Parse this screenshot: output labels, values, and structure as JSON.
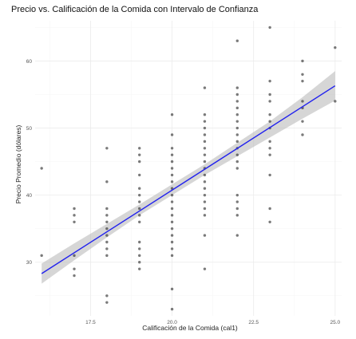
{
  "chart_data": {
    "type": "scatter",
    "title": "Precio vs. Calificación de la Comida con Intervalo de Confianza",
    "xlabel": "Calificación de la Comida (cal1)",
    "ylabel": "Precio Promedio (dólares)",
    "xlim": [
      15.8,
      25.2
    ],
    "ylim": [
      22,
      66
    ],
    "x_ticks": [
      17.5,
      20.0,
      22.5,
      25.0
    ],
    "x_tick_labels": [
      "17.5",
      "20.0",
      "22.5",
      "25.0"
    ],
    "y_ticks": [
      30,
      40,
      50,
      60
    ],
    "y_tick_labels": [
      "30",
      "40",
      "50",
      "60"
    ],
    "grid": true,
    "point_color": "#222222",
    "fit_line_color": "#2222ee",
    "ci_band_color": "#bbbbbb",
    "fit_line": {
      "x": [
        16,
        25
      ],
      "y": [
        28.3,
        56.3
      ]
    },
    "ci_band": {
      "x": [
        16,
        17,
        18,
        19,
        20,
        21,
        22,
        23,
        24,
        25
      ],
      "lower": [
        26.8,
        30.3,
        33.7,
        37.0,
        40.0,
        43.0,
        45.8,
        48.6,
        51.4,
        54.1
      ],
      "upper": [
        29.8,
        32.8,
        35.7,
        38.6,
        41.6,
        44.6,
        47.8,
        51.0,
        54.6,
        58.5
      ]
    },
    "points": [
      {
        "x": 16,
        "y": 44
      },
      {
        "x": 16,
        "y": 31
      },
      {
        "x": 17,
        "y": 38
      },
      {
        "x": 17,
        "y": 37
      },
      {
        "x": 17,
        "y": 36
      },
      {
        "x": 17,
        "y": 31
      },
      {
        "x": 17,
        "y": 29
      },
      {
        "x": 17,
        "y": 28
      },
      {
        "x": 18,
        "y": 47
      },
      {
        "x": 18,
        "y": 42
      },
      {
        "x": 18,
        "y": 38
      },
      {
        "x": 18,
        "y": 37
      },
      {
        "x": 18,
        "y": 36
      },
      {
        "x": 18,
        "y": 35
      },
      {
        "x": 18,
        "y": 34
      },
      {
        "x": 18,
        "y": 33
      },
      {
        "x": 18,
        "y": 32
      },
      {
        "x": 18,
        "y": 31
      },
      {
        "x": 18,
        "y": 25
      },
      {
        "x": 18,
        "y": 24
      },
      {
        "x": 19,
        "y": 47
      },
      {
        "x": 19,
        "y": 46
      },
      {
        "x": 19,
        "y": 45
      },
      {
        "x": 19,
        "y": 43
      },
      {
        "x": 19,
        "y": 41
      },
      {
        "x": 19,
        "y": 40
      },
      {
        "x": 19,
        "y": 39
      },
      {
        "x": 19,
        "y": 38
      },
      {
        "x": 19,
        "y": 37
      },
      {
        "x": 19,
        "y": 36
      },
      {
        "x": 19,
        "y": 33
      },
      {
        "x": 19,
        "y": 32
      },
      {
        "x": 19,
        "y": 31
      },
      {
        "x": 19,
        "y": 30
      },
      {
        "x": 19,
        "y": 29
      },
      {
        "x": 20,
        "y": 52
      },
      {
        "x": 20,
        "y": 49
      },
      {
        "x": 20,
        "y": 47
      },
      {
        "x": 20,
        "y": 46
      },
      {
        "x": 20,
        "y": 45
      },
      {
        "x": 20,
        "y": 44
      },
      {
        "x": 20,
        "y": 43
      },
      {
        "x": 20,
        "y": 42
      },
      {
        "x": 20,
        "y": 41
      },
      {
        "x": 20,
        "y": 40
      },
      {
        "x": 20,
        "y": 39
      },
      {
        "x": 20,
        "y": 38
      },
      {
        "x": 20,
        "y": 37
      },
      {
        "x": 20,
        "y": 36
      },
      {
        "x": 20,
        "y": 35
      },
      {
        "x": 20,
        "y": 34
      },
      {
        "x": 20,
        "y": 33
      },
      {
        "x": 20,
        "y": 32
      },
      {
        "x": 20,
        "y": 31
      },
      {
        "x": 20,
        "y": 26
      },
      {
        "x": 20,
        "y": 23
      },
      {
        "x": 21,
        "y": 56
      },
      {
        "x": 21,
        "y": 52
      },
      {
        "x": 21,
        "y": 51
      },
      {
        "x": 21,
        "y": 50
      },
      {
        "x": 21,
        "y": 49
      },
      {
        "x": 21,
        "y": 48
      },
      {
        "x": 21,
        "y": 47
      },
      {
        "x": 21,
        "y": 46
      },
      {
        "x": 21,
        "y": 45
      },
      {
        "x": 21,
        "y": 44
      },
      {
        "x": 21,
        "y": 43
      },
      {
        "x": 21,
        "y": 42
      },
      {
        "x": 21,
        "y": 41
      },
      {
        "x": 21,
        "y": 40
      },
      {
        "x": 21,
        "y": 39
      },
      {
        "x": 21,
        "y": 38
      },
      {
        "x": 21,
        "y": 37
      },
      {
        "x": 21,
        "y": 34
      },
      {
        "x": 21,
        "y": 29
      },
      {
        "x": 22,
        "y": 63
      },
      {
        "x": 22,
        "y": 56
      },
      {
        "x": 22,
        "y": 55
      },
      {
        "x": 22,
        "y": 54
      },
      {
        "x": 22,
        "y": 53
      },
      {
        "x": 22,
        "y": 52
      },
      {
        "x": 22,
        "y": 51
      },
      {
        "x": 22,
        "y": 50
      },
      {
        "x": 22,
        "y": 49
      },
      {
        "x": 22,
        "y": 48
      },
      {
        "x": 22,
        "y": 47
      },
      {
        "x": 22,
        "y": 46
      },
      {
        "x": 22,
        "y": 45
      },
      {
        "x": 22,
        "y": 44
      },
      {
        "x": 22,
        "y": 40
      },
      {
        "x": 22,
        "y": 39
      },
      {
        "x": 22,
        "y": 38
      },
      {
        "x": 22,
        "y": 37
      },
      {
        "x": 22,
        "y": 34
      },
      {
        "x": 23,
        "y": 65
      },
      {
        "x": 23,
        "y": 57
      },
      {
        "x": 23,
        "y": 55
      },
      {
        "x": 23,
        "y": 54
      },
      {
        "x": 23,
        "y": 52
      },
      {
        "x": 23,
        "y": 51
      },
      {
        "x": 23,
        "y": 50
      },
      {
        "x": 23,
        "y": 48
      },
      {
        "x": 23,
        "y": 47
      },
      {
        "x": 23,
        "y": 46
      },
      {
        "x": 23,
        "y": 43
      },
      {
        "x": 23,
        "y": 38
      },
      {
        "x": 23,
        "y": 36
      },
      {
        "x": 24,
        "y": 60
      },
      {
        "x": 24,
        "y": 58
      },
      {
        "x": 24,
        "y": 57
      },
      {
        "x": 24,
        "y": 54
      },
      {
        "x": 24,
        "y": 53
      },
      {
        "x": 24,
        "y": 51
      },
      {
        "x": 24,
        "y": 49
      },
      {
        "x": 25,
        "y": 62
      },
      {
        "x": 25,
        "y": 54
      }
    ]
  }
}
